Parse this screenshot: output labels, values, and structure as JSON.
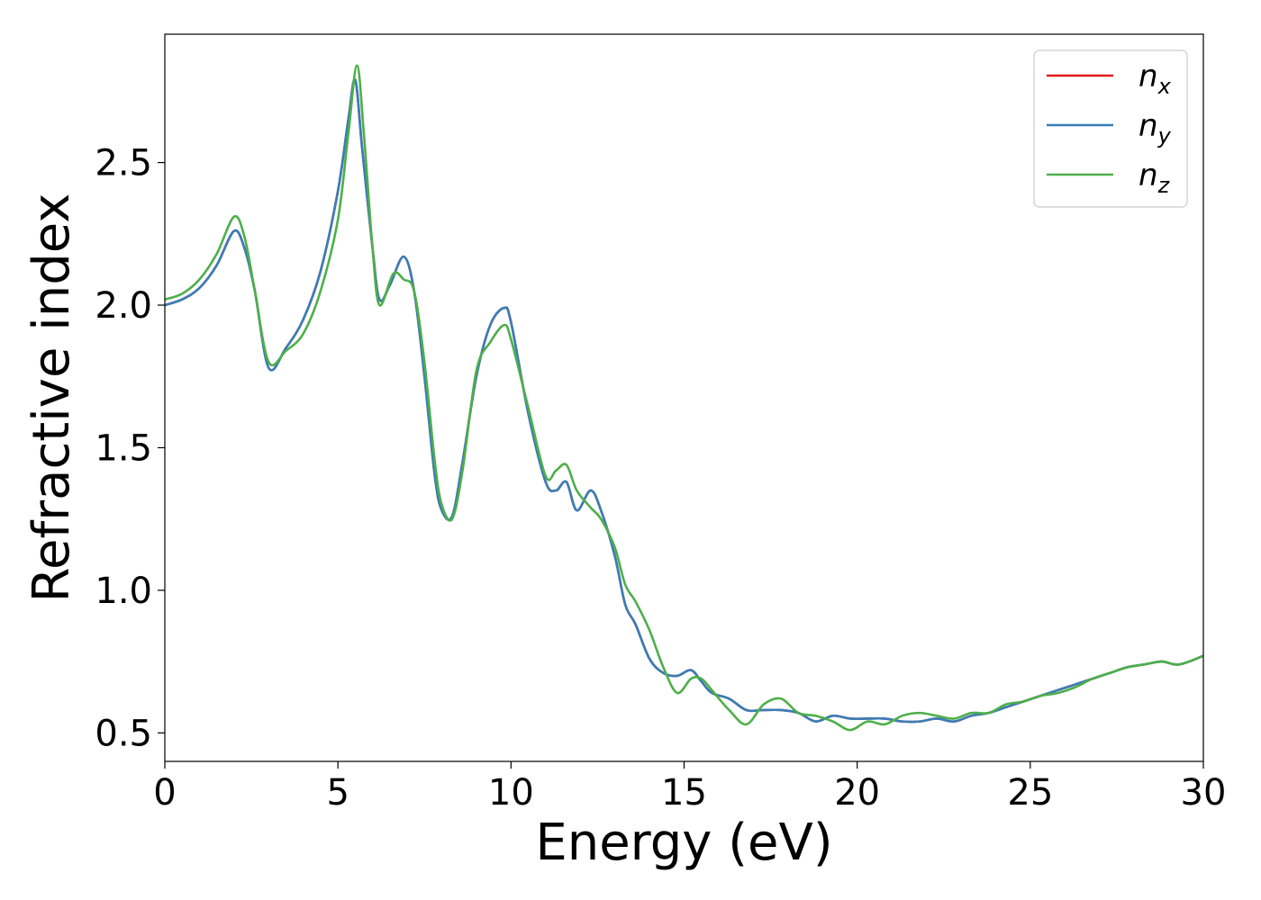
{
  "chart_data": {
    "type": "line",
    "title": "",
    "xlabel": "Energy (eV)",
    "ylabel": "Refractive index",
    "xlim": [
      0,
      30
    ],
    "ylim": [
      0.4,
      2.95
    ],
    "xticks": [
      0,
      5,
      10,
      15,
      20,
      25,
      30
    ],
    "yticks": [
      0.5,
      1.0,
      1.5,
      2.0,
      2.5
    ],
    "xtick_labels": [
      "0",
      "5",
      "10",
      "15",
      "20",
      "25",
      "30"
    ],
    "ytick_labels": [
      "0.5",
      "1.0",
      "1.5",
      "2.0",
      "2.5"
    ],
    "grid": false,
    "legend_position": "top-right",
    "series": [
      {
        "name": "n_x",
        "label_base": "n",
        "label_sub": "x",
        "color": "#e41a1c",
        "x": [
          0,
          0.5,
          1.0,
          1.5,
          2.0,
          2.3,
          2.6,
          3.0,
          3.5,
          4.0,
          4.5,
          5.0,
          5.3,
          5.5,
          5.7,
          6.0,
          6.2,
          6.5,
          6.9,
          7.2,
          7.5,
          7.8,
          8.0,
          8.3,
          8.6,
          9.0,
          9.4,
          9.8,
          10.0,
          10.5,
          11.0,
          11.3,
          11.6,
          11.9,
          12.3,
          12.6,
          13.0,
          13.3,
          13.6,
          14.0,
          14.4,
          14.8,
          15.2,
          15.5,
          15.8,
          16.3,
          16.8,
          17.3,
          17.8,
          18.3,
          18.8,
          19.3,
          19.8,
          20.3,
          20.8,
          21.3,
          21.8,
          22.3,
          22.8,
          23.3,
          23.8,
          24.3,
          24.8,
          25.3,
          25.8,
          26.3,
          26.8,
          27.3,
          27.8,
          28.3,
          28.8,
          29.3,
          30.0
        ],
        "y": [
          2.0,
          2.02,
          2.06,
          2.14,
          2.26,
          2.2,
          2.05,
          1.78,
          1.85,
          1.95,
          2.12,
          2.4,
          2.65,
          2.79,
          2.55,
          2.2,
          2.02,
          2.07,
          2.17,
          2.05,
          1.75,
          1.4,
          1.28,
          1.26,
          1.45,
          1.75,
          1.93,
          1.99,
          1.94,
          1.62,
          1.38,
          1.35,
          1.38,
          1.28,
          1.35,
          1.28,
          1.12,
          0.95,
          0.88,
          0.76,
          0.71,
          0.7,
          0.72,
          0.68,
          0.64,
          0.62,
          0.58,
          0.58,
          0.58,
          0.57,
          0.54,
          0.56,
          0.55,
          0.55,
          0.55,
          0.54,
          0.54,
          0.55,
          0.54,
          0.56,
          0.57,
          0.59,
          0.61,
          0.63,
          0.65,
          0.67,
          0.69,
          0.71,
          0.73,
          0.74,
          0.75,
          0.74,
          0.77
        ]
      },
      {
        "name": "n_y",
        "label_base": "n",
        "label_sub": "y",
        "color": "#377eb8",
        "x": [
          0,
          0.5,
          1.0,
          1.5,
          2.0,
          2.3,
          2.6,
          3.0,
          3.5,
          4.0,
          4.5,
          5.0,
          5.3,
          5.5,
          5.7,
          6.0,
          6.2,
          6.5,
          6.9,
          7.2,
          7.5,
          7.8,
          8.0,
          8.3,
          8.6,
          9.0,
          9.4,
          9.8,
          10.0,
          10.5,
          11.0,
          11.3,
          11.6,
          11.9,
          12.3,
          12.6,
          13.0,
          13.3,
          13.6,
          14.0,
          14.4,
          14.8,
          15.2,
          15.5,
          15.8,
          16.3,
          16.8,
          17.3,
          17.8,
          18.3,
          18.8,
          19.3,
          19.8,
          20.3,
          20.8,
          21.3,
          21.8,
          22.3,
          22.8,
          23.3,
          23.8,
          24.3,
          24.8,
          25.3,
          25.8,
          26.3,
          26.8,
          27.3,
          27.8,
          28.3,
          28.8,
          29.3,
          30.0
        ],
        "y": [
          2.0,
          2.02,
          2.06,
          2.14,
          2.26,
          2.2,
          2.05,
          1.78,
          1.85,
          1.95,
          2.12,
          2.4,
          2.65,
          2.79,
          2.55,
          2.2,
          2.02,
          2.07,
          2.17,
          2.05,
          1.75,
          1.4,
          1.28,
          1.26,
          1.45,
          1.75,
          1.93,
          1.99,
          1.94,
          1.62,
          1.38,
          1.35,
          1.38,
          1.28,
          1.35,
          1.28,
          1.12,
          0.95,
          0.88,
          0.76,
          0.71,
          0.7,
          0.72,
          0.68,
          0.64,
          0.62,
          0.58,
          0.58,
          0.58,
          0.57,
          0.54,
          0.56,
          0.55,
          0.55,
          0.55,
          0.54,
          0.54,
          0.55,
          0.54,
          0.56,
          0.57,
          0.59,
          0.61,
          0.63,
          0.65,
          0.67,
          0.69,
          0.71,
          0.73,
          0.74,
          0.75,
          0.74,
          0.77
        ]
      },
      {
        "name": "n_z",
        "label_base": "n",
        "label_sub": "z",
        "color": "#4daf4a",
        "x": [
          0,
          0.5,
          1.0,
          1.5,
          2.0,
          2.3,
          2.6,
          3.0,
          3.5,
          4.0,
          4.5,
          5.0,
          5.3,
          5.55,
          5.75,
          6.0,
          6.2,
          6.6,
          6.9,
          7.2,
          7.5,
          7.8,
          8.0,
          8.3,
          8.6,
          9.0,
          9.4,
          9.8,
          10.0,
          10.5,
          11.0,
          11.3,
          11.6,
          11.9,
          12.3,
          12.6,
          13.0,
          13.3,
          13.6,
          14.0,
          14.4,
          14.8,
          15.2,
          15.5,
          15.8,
          16.3,
          16.8,
          17.3,
          17.8,
          18.3,
          18.8,
          19.3,
          19.8,
          20.3,
          20.8,
          21.3,
          21.8,
          22.3,
          22.8,
          23.3,
          23.8,
          24.3,
          24.8,
          25.3,
          25.8,
          26.3,
          26.8,
          27.3,
          27.8,
          28.3,
          28.8,
          29.3,
          30.0
        ],
        "y": [
          2.02,
          2.04,
          2.09,
          2.18,
          2.31,
          2.24,
          2.05,
          1.8,
          1.84,
          1.9,
          2.05,
          2.3,
          2.6,
          2.84,
          2.6,
          2.2,
          2.0,
          2.11,
          2.09,
          2.05,
          1.8,
          1.45,
          1.3,
          1.25,
          1.42,
          1.77,
          1.87,
          1.93,
          1.88,
          1.64,
          1.4,
          1.42,
          1.44,
          1.35,
          1.29,
          1.25,
          1.15,
          1.02,
          0.96,
          0.86,
          0.73,
          0.64,
          0.69,
          0.69,
          0.65,
          0.58,
          0.53,
          0.6,
          0.62,
          0.57,
          0.56,
          0.54,
          0.51,
          0.54,
          0.53,
          0.56,
          0.57,
          0.56,
          0.55,
          0.57,
          0.57,
          0.6,
          0.61,
          0.63,
          0.64,
          0.66,
          0.69,
          0.71,
          0.73,
          0.74,
          0.75,
          0.74,
          0.77
        ]
      }
    ]
  }
}
